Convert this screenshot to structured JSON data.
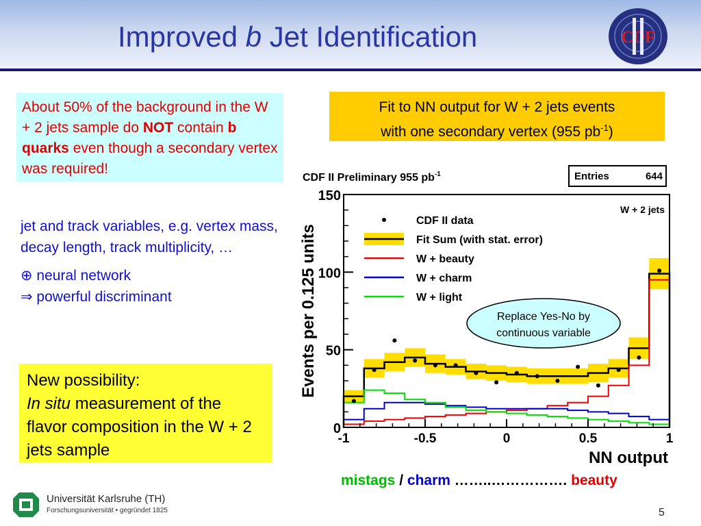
{
  "slide": {
    "title_pre": "Improved ",
    "title_italic": "b",
    "title_post": " Jet Identification",
    "page_number": "5"
  },
  "red_box": {
    "t1": "About 50% of the background in the W + 2 jets sample do ",
    "t2": "NOT",
    "t3": " contain ",
    "t4": "b quarks",
    "t5": " even though a secondary vertex was required!"
  },
  "blue_text": {
    "line1": "jet and track variables, e.g. vertex mass, decay length,  track multiplicity, …",
    "line2": "⊕ neural network",
    "line3": "⇒ powerful discriminant"
  },
  "yellow_box": {
    "line1": "New possibility:",
    "line2_italic": "In situ",
    "line2_rest": " measurement of the flavor composition in the W + 2 jets sample"
  },
  "orange_box": {
    "line1": "Fit to NN output for W + 2 jets events",
    "line2_pre": "with one secondary vertex (955 pb",
    "line2_sup": "-1",
    "line2_post": ")"
  },
  "footer": {
    "mistags": "mistags",
    "sep": " / ",
    "charm": "charm",
    "dots": " ……..……………. ",
    "beauty": "beauty"
  },
  "university": {
    "name": "Universität Karlsruhe (TH)",
    "sub": "Forschungsuniversität • gegründet 1825"
  },
  "callout": {
    "line1": "Replace Yes-No by",
    "line2": "continuous variable"
  },
  "chart_data": {
    "type": "histogram",
    "title": "CDF II Preliminary 955 pb",
    "title_sup": "-1",
    "stats_label": "Entries",
    "stats_value": "644",
    "corner_label": "W + 2 jets",
    "xlabel": "NN output",
    "ylabel": "Events per 0.125 units",
    "xlim": [
      -1,
      1
    ],
    "ylim": [
      0,
      150
    ],
    "xticks": [
      -1,
      -0.5,
      0,
      0.5,
      1
    ],
    "xtick_labels": [
      "-1",
      "-0.5",
      "0",
      "0.5",
      "1"
    ],
    "yticks": [
      0,
      50,
      100,
      150
    ],
    "ytick_labels": [
      "0",
      "50",
      "100",
      "150"
    ],
    "bin_edges": [
      -1,
      -0.875,
      -0.75,
      -0.625,
      -0.5,
      -0.375,
      -0.25,
      -0.125,
      0,
      0.125,
      0.25,
      0.375,
      0.5,
      0.625,
      0.75,
      0.875,
      1
    ],
    "legend": [
      {
        "label": "CDF II data",
        "style": "marker",
        "color": "#000000"
      },
      {
        "label": "Fit Sum (with stat. error)",
        "style": "band",
        "color": "#000000",
        "band_color": "#ffdd00"
      },
      {
        "label": "W + beauty",
        "style": "line",
        "color": "#ee0000"
      },
      {
        "label": "W + charm",
        "style": "line",
        "color": "#0000cc"
      },
      {
        "label": "W + light",
        "style": "line",
        "color": "#00dd00"
      }
    ],
    "series": [
      {
        "name": "CDF II data",
        "type": "points",
        "color": "#000000",
        "x": [
          -0.9375,
          -0.8125,
          -0.6875,
          -0.5625,
          -0.4375,
          -0.3125,
          -0.1875,
          -0.0625,
          0.0625,
          0.1875,
          0.3125,
          0.4375,
          0.5625,
          0.6875,
          0.8125,
          0.9375
        ],
        "y": [
          17,
          37,
          56,
          43,
          40,
          40,
          35,
          29,
          35,
          33,
          30,
          39,
          27,
          37,
          45,
          101
        ]
      },
      {
        "name": "Fit Sum (with stat. error)",
        "type": "step",
        "color": "#000000",
        "band_color": "#ffdd00",
        "values": [
          20,
          38,
          42,
          45,
          41,
          39,
          36,
          35,
          34,
          33,
          33,
          33,
          35,
          38,
          51,
          99
        ],
        "errors": [
          4,
          6,
          6,
          6,
          6,
          5,
          5,
          5,
          5,
          5,
          5,
          5,
          6,
          6,
          7,
          10
        ]
      },
      {
        "name": "W + beauty",
        "type": "step",
        "color": "#ee0000",
        "values": [
          2,
          4,
          5,
          6,
          7,
          8,
          9,
          10,
          11,
          12,
          14,
          16,
          20,
          27,
          40,
          95
        ]
      },
      {
        "name": "W + charm",
        "type": "step",
        "color": "#0000cc",
        "values": [
          5,
          12,
          16,
          16,
          15,
          14,
          13,
          12,
          12,
          12,
          12,
          11,
          10,
          9,
          7,
          5
        ]
      },
      {
        "name": "W + light",
        "type": "step",
        "color": "#00dd00",
        "values": [
          16,
          24,
          22,
          18,
          16,
          13,
          11,
          10,
          9,
          8,
          7,
          6,
          5,
          4,
          3,
          2
        ]
      }
    ]
  }
}
